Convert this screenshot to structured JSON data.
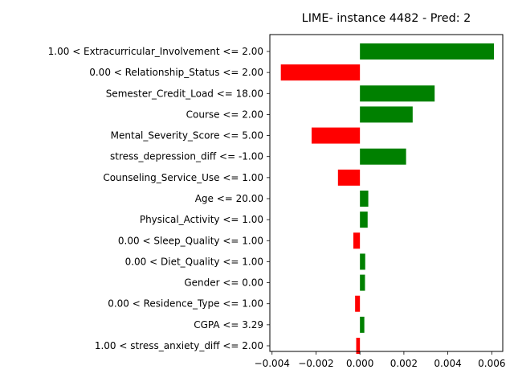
{
  "chart_data": {
    "type": "bar",
    "orientation": "horizontal",
    "title": "LIME- instance 4482 - Pred: 2",
    "xlabel": "",
    "ylabel": "",
    "xlim": [
      -0.0041,
      0.0065
    ],
    "xticks": [
      -0.004,
      -0.002,
      0.0,
      0.002,
      0.004,
      0.006
    ],
    "xtick_labels": [
      "−0.004",
      "−0.002",
      "0.000",
      "0.002",
      "0.004",
      "0.006"
    ],
    "grid": false,
    "legend": "none",
    "colors": {
      "positive": "#008000",
      "negative": "#ff0000"
    },
    "categories": [
      "1.00 < Extracurricular_Involvement <= 2.00",
      "0.00 < Relationship_Status <= 2.00",
      "Semester_Credit_Load <= 18.00",
      "Course <= 2.00",
      "Mental_Severity_Score <= 5.00",
      "stress_depression_diff <= -1.00",
      "Counseling_Service_Use <= 1.00",
      "Age <= 20.00",
      "Physical_Activity <= 1.00",
      "0.00 < Sleep_Quality <= 1.00",
      "0.00 < Diet_Quality <= 1.00",
      "Gender <= 0.00",
      "0.00 < Residence_Type <= 1.00",
      "CGPA <= 3.29",
      "1.00 < stress_anxiety_diff <= 2.00"
    ],
    "values": [
      0.0061,
      -0.0036,
      0.0034,
      0.0024,
      -0.0022,
      0.0021,
      -0.001,
      0.00038,
      0.00035,
      -0.0003,
      0.00024,
      0.00023,
      -0.00022,
      0.0002,
      -0.00017
    ]
  }
}
